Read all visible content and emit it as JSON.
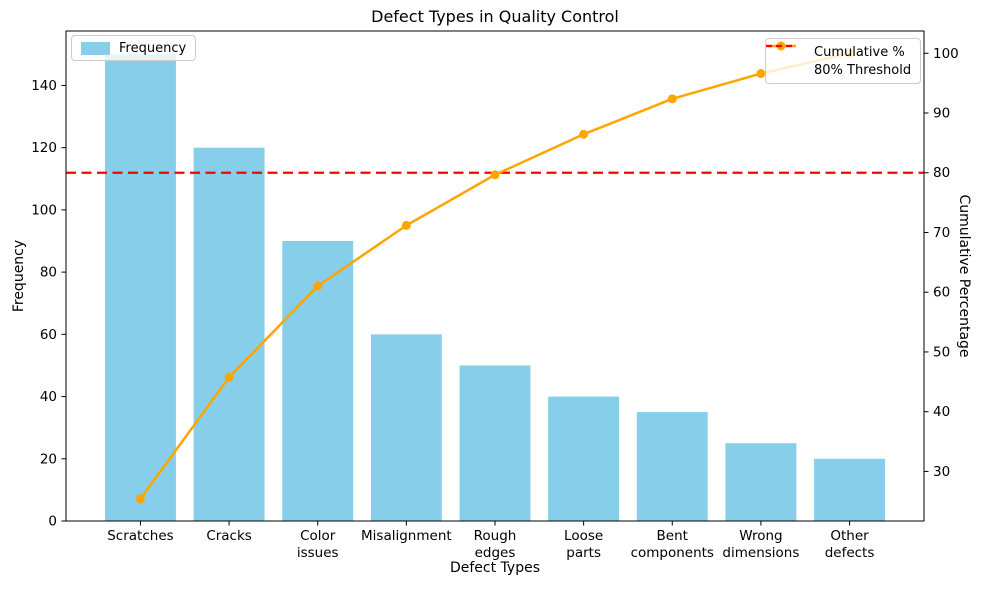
{
  "figure": {
    "title": "Defect Types in Quality Control",
    "xlabel": "Defect Types",
    "ylabel_left": "Frequency",
    "ylabel_right": "Cumulative Percentage"
  },
  "legends": {
    "frequency": {
      "label": "Frequency",
      "swatch_color": "#87CEEB",
      "position": "upper left"
    },
    "cumulative": {
      "position": "upper right",
      "items": [
        {
          "label": "Cumulative %",
          "style": "line-with-circle-marker",
          "color": "#FFA500"
        },
        {
          "label": "80% Threshold",
          "style": "dashed-line",
          "color": "#FF0000"
        }
      ]
    }
  },
  "chart_data": {
    "type": "bar",
    "subtype": "pareto",
    "title": "Defect Types in Quality Control",
    "xlabel": "Defect Types",
    "background": "#FFFFFF",
    "grid": false,
    "categories": [
      "Scratches",
      "Cracks",
      "Color\nissues",
      "Misalignment",
      "Rough\nedges",
      "Loose\nparts",
      "Bent\ncomponents",
      "Wrong\ndimensions",
      "Other\ndefects"
    ],
    "series": [
      {
        "name": "Frequency",
        "type": "bar",
        "axis": "left",
        "color": "#87CEEB",
        "values": [
          150,
          120,
          90,
          60,
          50,
          40,
          35,
          25,
          20
        ]
      },
      {
        "name": "Cumulative %",
        "type": "line",
        "axis": "right",
        "color": "#FFA500",
        "marker": "circle",
        "values": [
          25.42,
          45.76,
          61.02,
          71.19,
          79.66,
          86.44,
          92.37,
          96.61,
          100.0
        ]
      }
    ],
    "threshold_line": {
      "label": "80% Threshold",
      "value": 80,
      "axis": "right",
      "color": "#FF0000",
      "style": "dashed"
    },
    "left_axis": {
      "label": "Frequency",
      "ticks": [
        0,
        20,
        40,
        60,
        80,
        100,
        120,
        140
      ],
      "range": [
        0,
        157.5
      ]
    },
    "right_axis": {
      "label": "Cumulative Percentage",
      "ticks": [
        30,
        40,
        50,
        60,
        70,
        80,
        90,
        100
      ],
      "range": [
        21.7,
        103.73
      ]
    }
  }
}
